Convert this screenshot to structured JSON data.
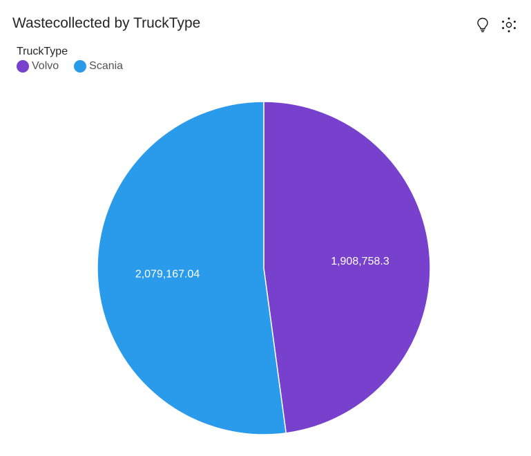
{
  "title": "Wastecollected by TruckType",
  "toolbar": {
    "insight_icon": "lightbulb-icon",
    "settings_icon": "focus-dots-icon"
  },
  "legend": {
    "title": "TruckType",
    "items": [
      {
        "label": "Volvo",
        "color": "#7740CD"
      },
      {
        "label": "Scania",
        "color": "#2A9BEA"
      }
    ]
  },
  "chart_data": {
    "type": "pie",
    "title": "Wastecollected by TruckType",
    "legend_title": "TruckType",
    "legend_placement": "top-left",
    "categories": [
      "Volvo",
      "Scania"
    ],
    "values": [
      1908758.3,
      2079167.04
    ],
    "labels": [
      "1,908,758.3",
      "2,079,167.04"
    ],
    "colors": [
      "#7740CD",
      "#2A9BEA"
    ]
  }
}
